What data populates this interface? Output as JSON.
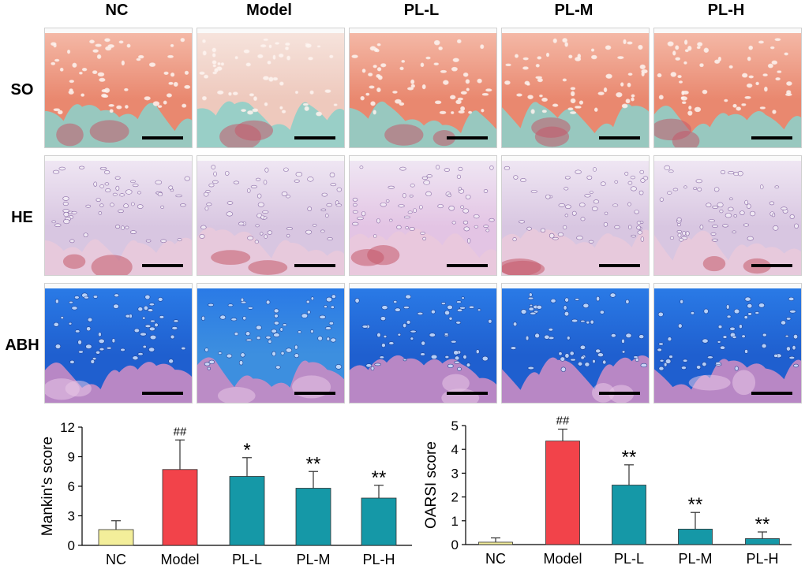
{
  "figure": {
    "columns": [
      "NC",
      "Model",
      "PL-L",
      "PL-M",
      "PL-H"
    ],
    "rows": [
      "SO",
      "HE",
      "ABH"
    ]
  },
  "colors": {
    "nc": "#f3ee9a",
    "model": "#f2434a",
    "pl": "#1598a7",
    "so_cartilage": "#e9886f",
    "so_bone": "#8fcfc8",
    "he_base": "#d8c6e1",
    "abh_base": "#1f5fcf"
  },
  "chart_data": [
    {
      "type": "bar",
      "categories": [
        "NC",
        "Model",
        "PL-L",
        "PL-M",
        "PL-H"
      ],
      "values": [
        1.6,
        7.7,
        7.0,
        5.8,
        4.8
      ],
      "errors": [
        0.9,
        3.0,
        1.9,
        1.7,
        1.3
      ],
      "annotations": [
        "",
        "##",
        "*",
        "**",
        "**"
      ],
      "title": "",
      "xlabel": "",
      "ylabel": "Mankin's score",
      "ylim": [
        0,
        12
      ],
      "yticks": [
        0,
        3,
        6,
        9,
        12
      ],
      "bar_colors": [
        "#f3ee9a",
        "#f2434a",
        "#1598a7",
        "#1598a7",
        "#1598a7"
      ]
    },
    {
      "type": "bar",
      "categories": [
        "NC",
        "Model",
        "PL-L",
        "PL-M",
        "PL-H"
      ],
      "values": [
        0.1,
        4.35,
        2.5,
        0.65,
        0.25
      ],
      "errors": [
        0.18,
        0.5,
        0.85,
        0.7,
        0.28
      ],
      "annotations": [
        "",
        "##",
        "**",
        "**",
        "**"
      ],
      "title": "",
      "xlabel": "",
      "ylabel": "OARSI score",
      "ylim": [
        0,
        5
      ],
      "yticks": [
        0,
        1,
        2,
        3,
        4,
        5
      ],
      "bar_colors": [
        "#f3ee9a",
        "#f2434a",
        "#1598a7",
        "#1598a7",
        "#1598a7"
      ]
    }
  ]
}
